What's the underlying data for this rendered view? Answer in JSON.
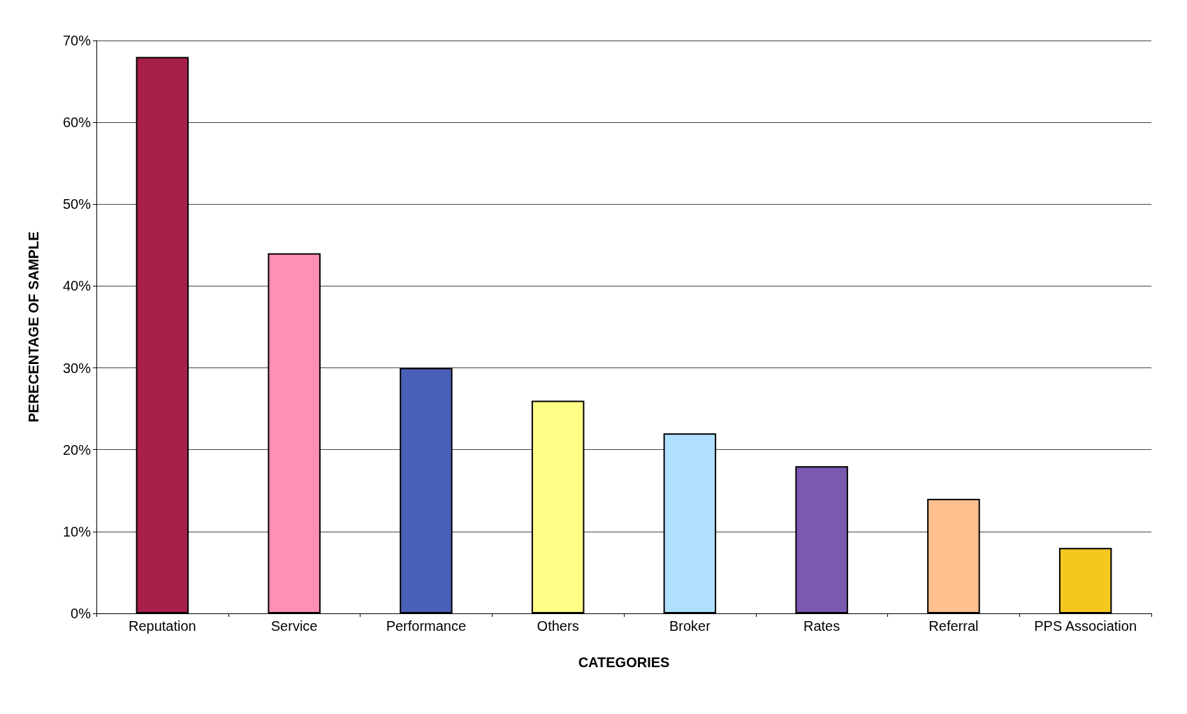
{
  "chart_data": {
    "type": "bar",
    "xlabel": "CATEGORIES",
    "ylabel": "PERECENTAGE OF SAMPLE",
    "categories": [
      "Reputation",
      "Service",
      "Performance",
      "Others",
      "Broker",
      "Rates",
      "Referral",
      "PPS Association"
    ],
    "values": [
      68,
      44,
      30,
      26,
      22,
      18,
      14,
      8
    ],
    "colors": [
      "#a8204a",
      "#ff8fb5",
      "#4a60b8",
      "#ffff88",
      "#b0e0ff",
      "#7a5ab0",
      "#ffc090",
      "#f5c820"
    ],
    "ylim": [
      0,
      70
    ],
    "yticks": [
      {
        "value": 0,
        "label": "0%"
      },
      {
        "value": 10,
        "label": "10%"
      },
      {
        "value": 20,
        "label": "20%"
      },
      {
        "value": 30,
        "label": "30%"
      },
      {
        "value": 40,
        "label": "40%"
      },
      {
        "value": 50,
        "label": "50%"
      },
      {
        "value": 60,
        "label": "60%"
      },
      {
        "value": 70,
        "label": "70%"
      }
    ],
    "grid": "y"
  }
}
